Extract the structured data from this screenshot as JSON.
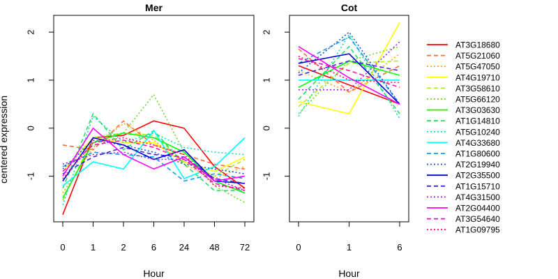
{
  "chart_data": {
    "type": "line",
    "ylabel": "centered expression",
    "panels": [
      {
        "title": "Mer",
        "xlabel": "Hour",
        "x": [
          "0",
          "1",
          "2",
          "6",
          "24",
          "48",
          "72"
        ],
        "ylim": [
          -1.95,
          2.35
        ],
        "yticks": [
          -1,
          0,
          1,
          2
        ],
        "series_values": [
          [
            -1.8,
            -0.2,
            -0.15,
            0.15,
            0.0,
            -0.8,
            -1.25
          ],
          [
            -0.35,
            -0.45,
            0.15,
            -0.35,
            -0.55,
            -0.75,
            -0.85
          ],
          [
            -1.35,
            -0.4,
            0.1,
            -0.25,
            -0.75,
            -1.05,
            -0.8
          ],
          [
            -0.9,
            -0.2,
            -0.3,
            -0.3,
            -0.7,
            -0.9,
            -0.6
          ],
          [
            -1.5,
            -0.2,
            -0.1,
            -0.15,
            -0.7,
            -1.0,
            -0.65
          ],
          [
            -1.1,
            -0.2,
            -0.1,
            0.7,
            -0.5,
            -1.2,
            -1.55
          ],
          [
            -1.45,
            -0.3,
            -0.1,
            -0.2,
            -0.5,
            -1.1,
            -1.35
          ],
          [
            -1.25,
            0.3,
            -0.45,
            -0.05,
            -0.75,
            -1.3,
            -1.3
          ],
          [
            -1.6,
            0.25,
            -0.3,
            -0.1,
            -0.4,
            -0.5,
            -0.55
          ],
          [
            -1.2,
            -0.7,
            -0.85,
            -0.05,
            -1.05,
            -0.8,
            -0.2
          ],
          [
            -0.8,
            -0.5,
            -0.55,
            -0.6,
            -1.1,
            -0.95,
            -1.05
          ],
          [
            -0.85,
            -0.25,
            -0.35,
            -0.5,
            -0.75,
            -0.85,
            -0.95
          ],
          [
            -1.1,
            -0.2,
            -0.35,
            -0.65,
            -0.45,
            -1.1,
            -1.15
          ],
          [
            -0.95,
            -0.6,
            -0.4,
            -0.55,
            -0.6,
            -1.05,
            -1.15
          ],
          [
            -0.75,
            -0.55,
            -0.5,
            -0.65,
            -0.65,
            -1.05,
            -1.3
          ],
          [
            -1.0,
            0.0,
            -0.55,
            -0.85,
            -0.6,
            -1.1,
            -1.0
          ],
          [
            -0.9,
            -0.35,
            -0.25,
            -0.4,
            -0.65,
            -1.15,
            -1.3
          ],
          [
            -1.05,
            -0.3,
            -0.2,
            -0.35,
            -0.55,
            -1.2,
            -1.25
          ]
        ]
      },
      {
        "title": "Cot",
        "xlabel": "Hour",
        "x": [
          "0",
          "1",
          "6"
        ],
        "ylim": [
          -1.95,
          2.35
        ],
        "yticks": [
          -1,
          0,
          1,
          2
        ],
        "series_values": [
          [
            1.3,
            0.9,
            0.5
          ],
          [
            1.65,
            0.75,
            1.3
          ],
          [
            1.2,
            0.75,
            1.55
          ],
          [
            0.55,
            0.3,
            2.2
          ],
          [
            0.45,
            1.35,
            1.4
          ],
          [
            0.3,
            1.4,
            1.7
          ],
          [
            0.85,
            1.4,
            1.1
          ],
          [
            0.6,
            1.7,
            0.3
          ],
          [
            0.25,
            1.95,
            0.2
          ],
          [
            1.0,
            1.0,
            1.0
          ],
          [
            1.35,
            1.9,
            0.5
          ],
          [
            1.15,
            2.0,
            0.5
          ],
          [
            1.35,
            1.55,
            0.5
          ],
          [
            1.1,
            1.4,
            1.2
          ],
          [
            0.8,
            0.8,
            1.8
          ],
          [
            1.7,
            1.05,
            0.5
          ],
          [
            1.45,
            1.2,
            0.85
          ],
          [
            1.5,
            1.0,
            0.95
          ]
        ]
      }
    ],
    "legend": {
      "position": "right",
      "entries": [
        {
          "name": "AT3G18680",
          "color": "#ff0000",
          "dash": "solid"
        },
        {
          "name": "AT5G21060",
          "color": "#ff6a33",
          "dash": "dashed"
        },
        {
          "name": "AT5G47050",
          "color": "#ffaa00",
          "dash": "dotted"
        },
        {
          "name": "AT4G19710",
          "color": "#ffff00",
          "dash": "solid"
        },
        {
          "name": "AT3G58610",
          "color": "#aaee22",
          "dash": "dashed"
        },
        {
          "name": "AT5G66120",
          "color": "#66dd22",
          "dash": "dotted"
        },
        {
          "name": "AT3G03630",
          "color": "#00ff00",
          "dash": "solid"
        },
        {
          "name": "AT1G14810",
          "color": "#22dd66",
          "dash": "dashed"
        },
        {
          "name": "AT5G10240",
          "color": "#11ddaa",
          "dash": "dotted"
        },
        {
          "name": "AT4G33680",
          "color": "#00ffff",
          "dash": "solid"
        },
        {
          "name": "AT1G80600",
          "color": "#1199ee",
          "dash": "dashed"
        },
        {
          "name": "AT2G19940",
          "color": "#1155dd",
          "dash": "dotted"
        },
        {
          "name": "AT2G35500",
          "color": "#0000dd",
          "dash": "solid"
        },
        {
          "name": "AT1G15710",
          "color": "#4422dd",
          "dash": "dashed"
        },
        {
          "name": "AT4G31500",
          "color": "#9922ee",
          "dash": "dotted"
        },
        {
          "name": "AT2G04400",
          "color": "#ff00ff",
          "dash": "solid"
        },
        {
          "name": "AT3G54640",
          "color": "#ff11aa",
          "dash": "dashed"
        },
        {
          "name": "AT1G09795",
          "color": "#ff1166",
          "dash": "dotted"
        }
      ]
    }
  }
}
